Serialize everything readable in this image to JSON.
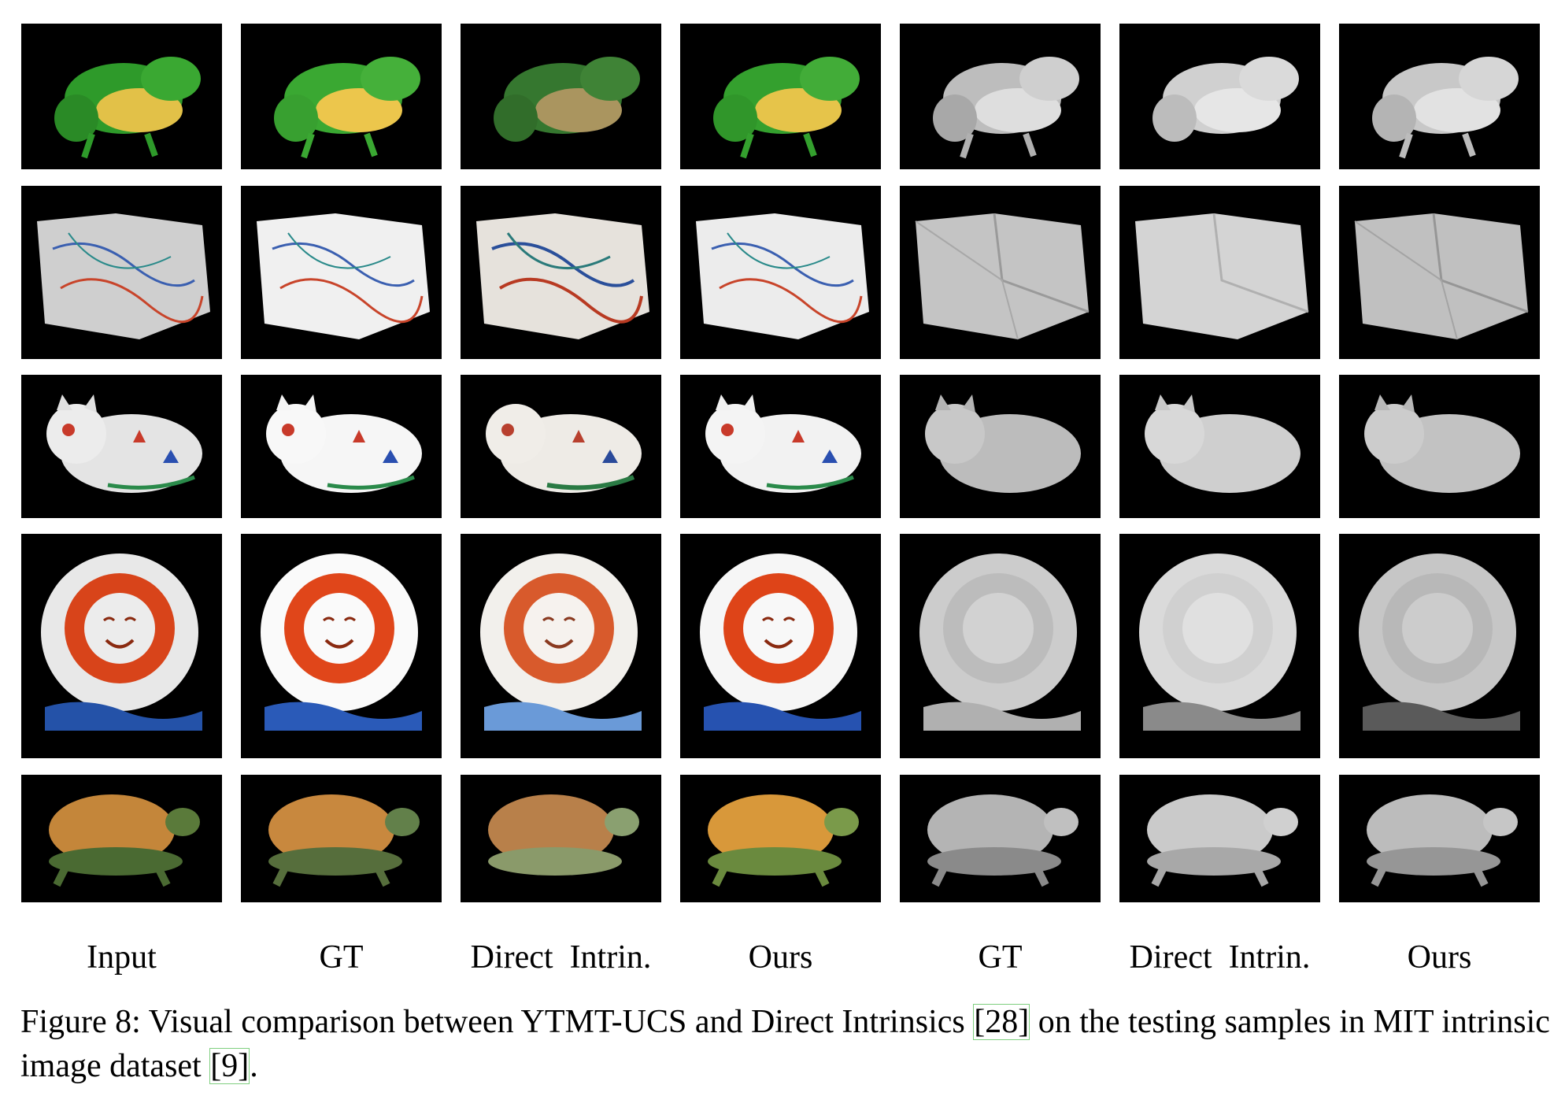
{
  "figure": {
    "columns": [
      {
        "key": "input",
        "label": "Input"
      },
      {
        "key": "gt_reflectance",
        "label": "GT"
      },
      {
        "key": "direct_reflectance",
        "label": "Direct  Intrin."
      },
      {
        "key": "ours_reflectance",
        "label": "Ours"
      },
      {
        "key": "gt_shading",
        "label": "GT"
      },
      {
        "key": "direct_shading",
        "label": "Direct  Intrin."
      },
      {
        "key": "ours_shading",
        "label": "Ours"
      }
    ],
    "rows": [
      "frog",
      "paper",
      "cat",
      "sun",
      "turtle"
    ],
    "caption": {
      "prefix": "Figure 8: Visual comparison between YTMT-UCS and Direct Intrinsics ",
      "cite1": "[28]",
      "middle": " on the testing samples in MIT intrinsic image dataset ",
      "cite2": "[9]",
      "suffix": "."
    }
  },
  "colors": {
    "frog_green": "#3aa832",
    "frog_yellow": "#e8c64a",
    "sun_orange": "#e0461a",
    "sun_blue": "#2452a8",
    "turtle_shell": "#c8863c",
    "turtle_body": "#5a7a3a",
    "shading_gray": "#d8d8d8"
  }
}
